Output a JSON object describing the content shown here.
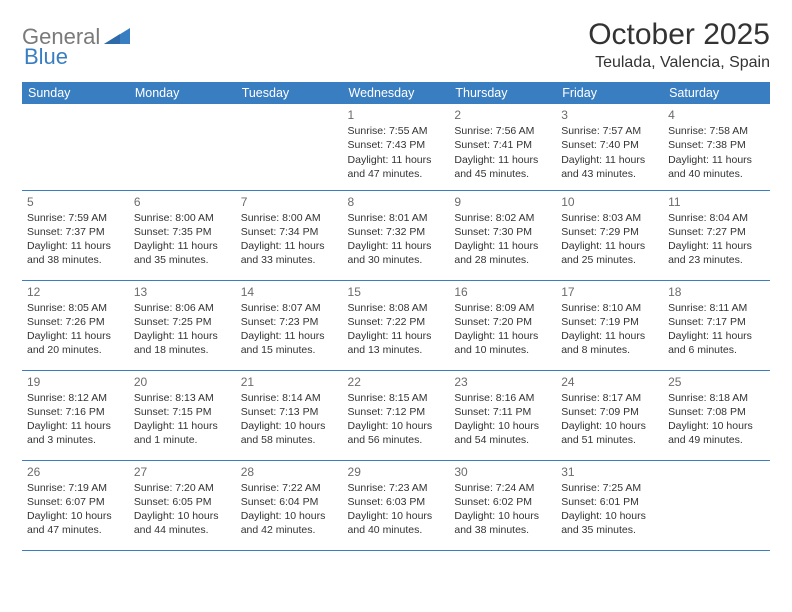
{
  "brand": {
    "part1": "General",
    "part2": "Blue",
    "color_gray": "#7a7a7a",
    "color_blue": "#3a7ec2"
  },
  "title": "October 2025",
  "location": "Teulada, Valencia, Spain",
  "header_bg": "#3a7ec2",
  "header_fg": "#ffffff",
  "border_color": "#3a7ec2",
  "text_color": "#333333",
  "daynum_color": "#6b6b6b",
  "day_headers": [
    "Sunday",
    "Monday",
    "Tuesday",
    "Wednesday",
    "Thursday",
    "Friday",
    "Saturday"
  ],
  "weeks": [
    [
      null,
      null,
      null,
      {
        "n": "1",
        "sr": "Sunrise: 7:55 AM",
        "ss": "Sunset: 7:43 PM",
        "dl": "Daylight: 11 hours and 47 minutes."
      },
      {
        "n": "2",
        "sr": "Sunrise: 7:56 AM",
        "ss": "Sunset: 7:41 PM",
        "dl": "Daylight: 11 hours and 45 minutes."
      },
      {
        "n": "3",
        "sr": "Sunrise: 7:57 AM",
        "ss": "Sunset: 7:40 PM",
        "dl": "Daylight: 11 hours and 43 minutes."
      },
      {
        "n": "4",
        "sr": "Sunrise: 7:58 AM",
        "ss": "Sunset: 7:38 PM",
        "dl": "Daylight: 11 hours and 40 minutes."
      }
    ],
    [
      {
        "n": "5",
        "sr": "Sunrise: 7:59 AM",
        "ss": "Sunset: 7:37 PM",
        "dl": "Daylight: 11 hours and 38 minutes."
      },
      {
        "n": "6",
        "sr": "Sunrise: 8:00 AM",
        "ss": "Sunset: 7:35 PM",
        "dl": "Daylight: 11 hours and 35 minutes."
      },
      {
        "n": "7",
        "sr": "Sunrise: 8:00 AM",
        "ss": "Sunset: 7:34 PM",
        "dl": "Daylight: 11 hours and 33 minutes."
      },
      {
        "n": "8",
        "sr": "Sunrise: 8:01 AM",
        "ss": "Sunset: 7:32 PM",
        "dl": "Daylight: 11 hours and 30 minutes."
      },
      {
        "n": "9",
        "sr": "Sunrise: 8:02 AM",
        "ss": "Sunset: 7:30 PM",
        "dl": "Daylight: 11 hours and 28 minutes."
      },
      {
        "n": "10",
        "sr": "Sunrise: 8:03 AM",
        "ss": "Sunset: 7:29 PM",
        "dl": "Daylight: 11 hours and 25 minutes."
      },
      {
        "n": "11",
        "sr": "Sunrise: 8:04 AM",
        "ss": "Sunset: 7:27 PM",
        "dl": "Daylight: 11 hours and 23 minutes."
      }
    ],
    [
      {
        "n": "12",
        "sr": "Sunrise: 8:05 AM",
        "ss": "Sunset: 7:26 PM",
        "dl": "Daylight: 11 hours and 20 minutes."
      },
      {
        "n": "13",
        "sr": "Sunrise: 8:06 AM",
        "ss": "Sunset: 7:25 PM",
        "dl": "Daylight: 11 hours and 18 minutes."
      },
      {
        "n": "14",
        "sr": "Sunrise: 8:07 AM",
        "ss": "Sunset: 7:23 PM",
        "dl": "Daylight: 11 hours and 15 minutes."
      },
      {
        "n": "15",
        "sr": "Sunrise: 8:08 AM",
        "ss": "Sunset: 7:22 PM",
        "dl": "Daylight: 11 hours and 13 minutes."
      },
      {
        "n": "16",
        "sr": "Sunrise: 8:09 AM",
        "ss": "Sunset: 7:20 PM",
        "dl": "Daylight: 11 hours and 10 minutes."
      },
      {
        "n": "17",
        "sr": "Sunrise: 8:10 AM",
        "ss": "Sunset: 7:19 PM",
        "dl": "Daylight: 11 hours and 8 minutes."
      },
      {
        "n": "18",
        "sr": "Sunrise: 8:11 AM",
        "ss": "Sunset: 7:17 PM",
        "dl": "Daylight: 11 hours and 6 minutes."
      }
    ],
    [
      {
        "n": "19",
        "sr": "Sunrise: 8:12 AM",
        "ss": "Sunset: 7:16 PM",
        "dl": "Daylight: 11 hours and 3 minutes."
      },
      {
        "n": "20",
        "sr": "Sunrise: 8:13 AM",
        "ss": "Sunset: 7:15 PM",
        "dl": "Daylight: 11 hours and 1 minute."
      },
      {
        "n": "21",
        "sr": "Sunrise: 8:14 AM",
        "ss": "Sunset: 7:13 PM",
        "dl": "Daylight: 10 hours and 58 minutes."
      },
      {
        "n": "22",
        "sr": "Sunrise: 8:15 AM",
        "ss": "Sunset: 7:12 PM",
        "dl": "Daylight: 10 hours and 56 minutes."
      },
      {
        "n": "23",
        "sr": "Sunrise: 8:16 AM",
        "ss": "Sunset: 7:11 PM",
        "dl": "Daylight: 10 hours and 54 minutes."
      },
      {
        "n": "24",
        "sr": "Sunrise: 8:17 AM",
        "ss": "Sunset: 7:09 PM",
        "dl": "Daylight: 10 hours and 51 minutes."
      },
      {
        "n": "25",
        "sr": "Sunrise: 8:18 AM",
        "ss": "Sunset: 7:08 PM",
        "dl": "Daylight: 10 hours and 49 minutes."
      }
    ],
    [
      {
        "n": "26",
        "sr": "Sunrise: 7:19 AM",
        "ss": "Sunset: 6:07 PM",
        "dl": "Daylight: 10 hours and 47 minutes."
      },
      {
        "n": "27",
        "sr": "Sunrise: 7:20 AM",
        "ss": "Sunset: 6:05 PM",
        "dl": "Daylight: 10 hours and 44 minutes."
      },
      {
        "n": "28",
        "sr": "Sunrise: 7:22 AM",
        "ss": "Sunset: 6:04 PM",
        "dl": "Daylight: 10 hours and 42 minutes."
      },
      {
        "n": "29",
        "sr": "Sunrise: 7:23 AM",
        "ss": "Sunset: 6:03 PM",
        "dl": "Daylight: 10 hours and 40 minutes."
      },
      {
        "n": "30",
        "sr": "Sunrise: 7:24 AM",
        "ss": "Sunset: 6:02 PM",
        "dl": "Daylight: 10 hours and 38 minutes."
      },
      {
        "n": "31",
        "sr": "Sunrise: 7:25 AM",
        "ss": "Sunset: 6:01 PM",
        "dl": "Daylight: 10 hours and 35 minutes."
      },
      null
    ]
  ]
}
